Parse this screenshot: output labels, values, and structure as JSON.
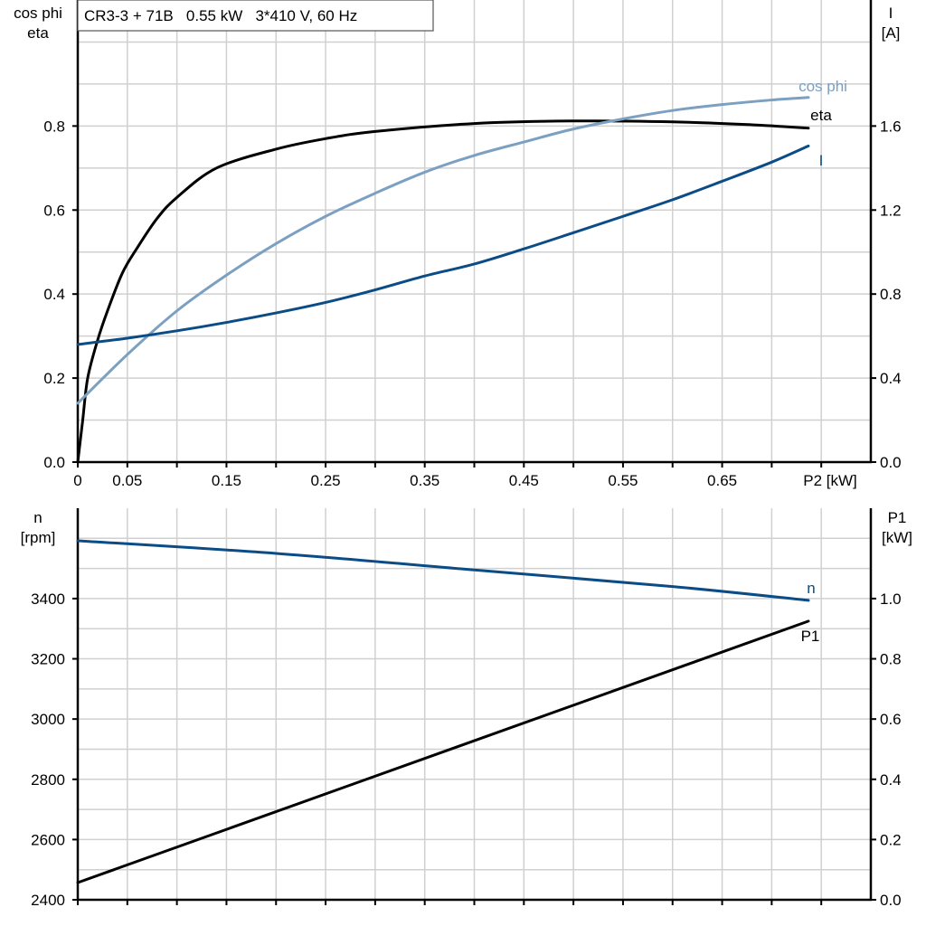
{
  "chart_data": [
    {
      "type": "line",
      "title": "CR3-3 + 71B   0.55 kW   3*410 V, 60 Hz",
      "xlabel": "P2 [kW]",
      "ylabel_left": [
        "cos phi",
        "eta"
      ],
      "ylabel_right": [
        "I",
        "[A]"
      ],
      "xlim": [
        0,
        0.8
      ],
      "ylim_left": [
        0,
        1.1
      ],
      "ylim_right": [
        0,
        2.2
      ],
      "x_ticks": [
        "0",
        "0.05",
        "0.15",
        "0.25",
        "0.35",
        "0.45",
        "0.55",
        "0.65"
      ],
      "x_tick_values": [
        0,
        0.05,
        0.15,
        0.25,
        0.35,
        0.45,
        0.55,
        0.65
      ],
      "y_ticks_left": [
        "0.0",
        "0.2",
        "0.4",
        "0.6",
        "0.8"
      ],
      "y_tick_values_left": [
        0,
        0.2,
        0.4,
        0.6,
        0.8
      ],
      "y_ticks_right": [
        "0.0",
        "0.4",
        "0.8",
        "1.2",
        "1.6"
      ],
      "y_tick_values_right": [
        0,
        0.4,
        0.8,
        1.2,
        1.6
      ],
      "grid": true,
      "series": [
        {
          "name": "eta",
          "axis": "left",
          "color": "#000000",
          "x": [
            0,
            0.005,
            0.01,
            0.02,
            0.03,
            0.045,
            0.06,
            0.08,
            0.1,
            0.14,
            0.2,
            0.25,
            0.3,
            0.4,
            0.5,
            0.6,
            0.68,
            0.737
          ],
          "y": [
            0,
            0.1,
            0.2,
            0.29,
            0.36,
            0.45,
            0.51,
            0.58,
            0.63,
            0.7,
            0.745,
            0.77,
            0.787,
            0.806,
            0.812,
            0.81,
            0.803,
            0.795
          ]
        },
        {
          "name": "cos phi",
          "axis": "left",
          "color": "#7ba0c1",
          "x": [
            0,
            0.05,
            0.1,
            0.15,
            0.2,
            0.25,
            0.3,
            0.35,
            0.4,
            0.45,
            0.5,
            0.55,
            0.6,
            0.65,
            0.7,
            0.737
          ],
          "y": [
            0.14,
            0.256,
            0.36,
            0.445,
            0.52,
            0.585,
            0.64,
            0.69,
            0.73,
            0.762,
            0.793,
            0.817,
            0.837,
            0.851,
            0.862,
            0.868
          ]
        },
        {
          "name": "I",
          "axis": "right",
          "color": "#0b4c86",
          "x": [
            0,
            0.05,
            0.1,
            0.15,
            0.2,
            0.25,
            0.3,
            0.35,
            0.4,
            0.45,
            0.5,
            0.55,
            0.6,
            0.65,
            0.7,
            0.737
          ],
          "y": [
            0.56,
            0.59,
            0.625,
            0.665,
            0.71,
            0.76,
            0.82,
            0.886,
            0.943,
            1.015,
            1.092,
            1.17,
            1.249,
            1.337,
            1.428,
            1.505
          ]
        }
      ]
    },
    {
      "type": "line",
      "xlim": [
        0,
        0.8
      ],
      "ylabel_left": [
        "n",
        "[rpm]"
      ],
      "ylabel_right": [
        "P1",
        "[kW]"
      ],
      "ylim_left": [
        2400,
        3700
      ],
      "ylim_right": [
        0,
        1.3
      ],
      "y_ticks_left": [
        "2400",
        "2600",
        "2800",
        "3000",
        "3200",
        "3400"
      ],
      "y_tick_values_left": [
        2400,
        2600,
        2800,
        3000,
        3200,
        3400
      ],
      "y_ticks_right": [
        "0.0",
        "0.2",
        "0.4",
        "0.6",
        "0.8",
        "1.0"
      ],
      "y_tick_values_right": [
        0,
        0.2,
        0.4,
        0.6,
        0.8,
        1.0
      ],
      "grid": true,
      "series": [
        {
          "name": "n",
          "axis": "left",
          "color": "#0b4c86",
          "x": [
            0,
            0.2,
            0.4,
            0.6,
            0.737
          ],
          "y": [
            3592,
            3550,
            3495,
            3440,
            3394
          ]
        },
        {
          "name": "P1",
          "axis": "right",
          "color": "#000000",
          "x": [
            0,
            0.737
          ],
          "y": [
            0.057,
            0.925
          ]
        }
      ]
    }
  ]
}
